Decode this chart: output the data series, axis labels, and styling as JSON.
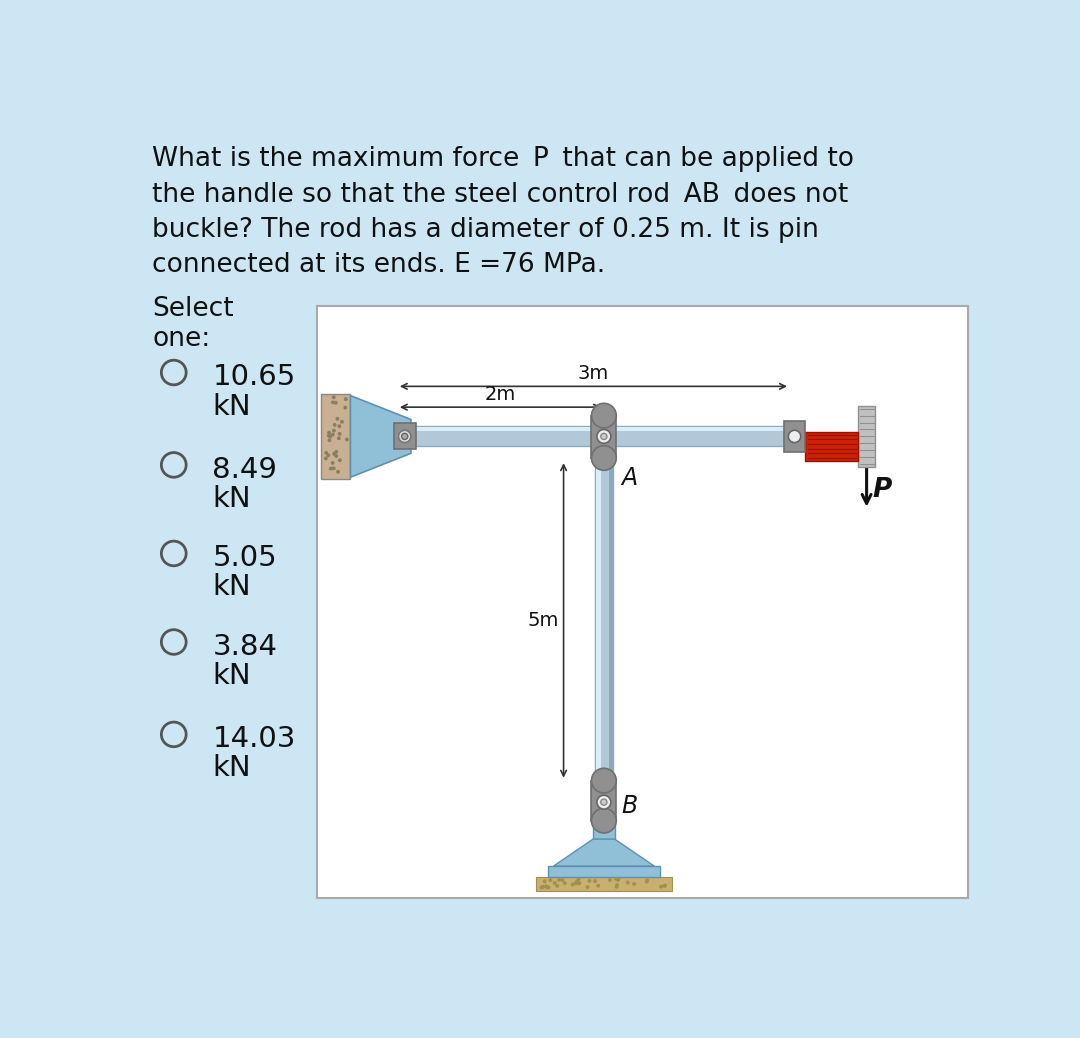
{
  "bg_color": "#cce6f4",
  "question_text_line1": "What is the maximum force  P  that can be applied to",
  "question_text_line2": "the handle so that the steel control rod  AB  does not",
  "question_text_line3": "buckle? The rod has a diameter of 0.25 m. It is pin",
  "question_text_line4": "connected at its ends. E =76 MPa.",
  "select_label1": "Select",
  "select_label2": "one:",
  "options": [
    "10.65",
    "8.49",
    "5.05",
    "3.84",
    "14.03"
  ],
  "unit": "kN",
  "diagram_bg": "#ffffff",
  "dim_3m": "3m",
  "dim_2m": "2m",
  "dim_5m": "5m",
  "label_A": "A",
  "label_B": "B",
  "label_P": "P",
  "rod_color": "#b0c8d8",
  "rod_dark": "#8aabbc",
  "rod_light": "#d8eef8",
  "connector_color": "#909090",
  "connector_dark": "#707070",
  "wall_hatch_color": "#b0b0b0",
  "wall_beige": "#c8b090",
  "wall_dots": "#888060",
  "blue_handle": "#90c0d8",
  "blue_handle_edge": "#6090b0",
  "red_block_color": "#cc2200",
  "red_block_dark": "#991100",
  "base_color": "#90c0d8",
  "base_edge": "#6090b0",
  "ground_tan": "#c8b070",
  "ground_dark": "#a09050",
  "arrow_color": "#222222",
  "text_color": "#111111",
  "text_fontsize": 19,
  "option_fontsize": 21,
  "diagram_label_fontsize": 15,
  "dim_fontsize": 14
}
